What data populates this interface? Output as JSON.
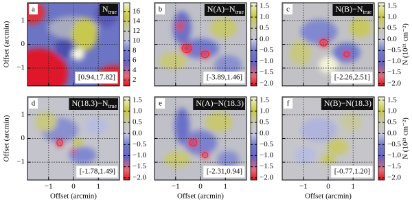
{
  "chart_data": [
    {
      "type": "heatmap",
      "label": "a",
      "title": {
        "main": "N",
        "sub": "true"
      },
      "range_label": "[0.94,17.82]",
      "xlim": [
        -1.85,
        1.85
      ],
      "ylim": [
        -1.75,
        1.75
      ],
      "xticks": [
        {
          "value": -1,
          "label": "−1"
        },
        0,
        1
      ],
      "yticks": [
        {
          "value": -1,
          "label": "−1"
        },
        0,
        1
      ],
      "show_xticklabels": false,
      "show_yticklabels": true,
      "ylabel": "Offset (arcmin)",
      "grid": true,
      "colorbar": {
        "lim": [
          0.8,
          17.8
        ],
        "ticks": [
          2,
          4,
          6,
          8,
          10,
          12,
          14,
          16
        ]
      }
    },
    {
      "type": "heatmap",
      "label": "b",
      "title": {
        "main": "N(A)−N",
        "sub": "true"
      },
      "range_label": "[-3.89,1.46]",
      "xlim": [
        -1.85,
        1.85
      ],
      "ylim": [
        -1.75,
        1.75
      ],
      "xticks": [
        -1,
        0,
        1
      ],
      "yticks": [
        -1,
        0,
        1
      ],
      "show_xticklabels": false,
      "show_yticklabels": false,
      "grid": true,
      "colorbar": {
        "lim": [
          -2.1,
          1.65
        ],
        "ticks": [
          {
            "value": -2,
            "label": "−2.0"
          },
          {
            "value": -1.5,
            "label": "−1.5"
          },
          {
            "value": -1,
            "label": "−1.0"
          },
          {
            "value": -0.5,
            "label": "−0.5"
          },
          {
            "value": 0,
            "label": "0.0"
          },
          {
            "value": 0.5,
            "label": "0.5"
          },
          {
            "value": 1,
            "label": "1.0"
          },
          {
            "value": 1.5,
            "label": "1.5"
          }
        ]
      }
    },
    {
      "type": "heatmap",
      "label": "c",
      "title": {
        "main": "N(B)−N",
        "sub": "true"
      },
      "range_label": "[-2.26,2.51]",
      "xlim": [
        -1.85,
        1.85
      ],
      "ylim": [
        -1.75,
        1.75
      ],
      "xticks": [
        -1,
        0,
        1
      ],
      "yticks": [
        -1,
        0,
        1
      ],
      "show_xticklabels": false,
      "show_yticklabels": false,
      "grid": true,
      "colorbar": {
        "lim": [
          -2.1,
          1.65
        ],
        "label": "N (10²¹ cm⁻²)",
        "ticks": [
          {
            "value": -2,
            "label": "−2.0"
          },
          {
            "value": -1.5,
            "label": "−1.5"
          },
          {
            "value": -1,
            "label": "−1.0"
          },
          {
            "value": -0.5,
            "label": "−0.5"
          },
          {
            "value": 0,
            "label": "0.0"
          },
          {
            "value": 0.5,
            "label": "0.5"
          },
          {
            "value": 1,
            "label": "1.0"
          },
          {
            "value": 1.5,
            "label": "1.5"
          }
        ]
      }
    },
    {
      "type": "heatmap",
      "label": "d",
      "title": {
        "main": "N(18.3)−N",
        "sub": "true"
      },
      "range_label": "[-1.78,1.49]",
      "xlim": [
        -1.85,
        1.85
      ],
      "ylim": [
        -1.75,
        1.75
      ],
      "xticks": [
        {
          "value": -1,
          "label": "−1"
        },
        0,
        1
      ],
      "yticks": [
        {
          "value": -1,
          "label": "−1"
        },
        0,
        1
      ],
      "show_xticklabels": true,
      "show_yticklabels": true,
      "xlabel": "Offset (arcmin)",
      "ylabel": "Offset (arcmin)",
      "grid": true,
      "colorbar": {
        "lim": [
          -2.1,
          1.65
        ],
        "ticks": [
          {
            "value": -2,
            "label": "−2.0"
          },
          {
            "value": -1.5,
            "label": "−1.5"
          },
          {
            "value": -1,
            "label": "−1.0"
          },
          {
            "value": -0.5,
            "label": "−0.5"
          },
          {
            "value": 0,
            "label": "0.0"
          },
          {
            "value": 0.5,
            "label": "0.5"
          },
          {
            "value": 1,
            "label": "1.0"
          },
          {
            "value": 1.5,
            "label": "1.5"
          }
        ]
      }
    },
    {
      "type": "heatmap",
      "label": "e",
      "title": {
        "main": "N(A)−N(18.3)"
      },
      "range_label": "[-2.31,0.94]",
      "xlim": [
        -1.85,
        1.85
      ],
      "ylim": [
        -1.75,
        1.75
      ],
      "xticks": [
        {
          "value": -1,
          "label": "−1"
        },
        0,
        1
      ],
      "yticks": [
        -1,
        0,
        1
      ],
      "show_xticklabels": true,
      "show_yticklabels": false,
      "xlabel": "Offset (arcmin)",
      "grid": true,
      "colorbar": {
        "lim": [
          -2.1,
          1.65
        ],
        "ticks": [
          {
            "value": -2,
            "label": "−2.0"
          },
          {
            "value": -1.5,
            "label": "−1.5"
          },
          {
            "value": -1,
            "label": "−1.0"
          },
          {
            "value": -0.5,
            "label": "−0.5"
          },
          {
            "value": 0,
            "label": "0.0"
          },
          {
            "value": 0.5,
            "label": "0.5"
          },
          {
            "value": 1,
            "label": "1.0"
          },
          {
            "value": 1.5,
            "label": "1.5"
          }
        ]
      }
    },
    {
      "type": "heatmap",
      "label": "f",
      "title": {
        "main": "N(B)−N(18.3)"
      },
      "range_label": "[-0.77,1.20]",
      "xlim": [
        -1.85,
        1.85
      ],
      "ylim": [
        -1.75,
        1.75
      ],
      "xticks": [
        {
          "value": -1,
          "label": "−1"
        },
        0,
        1
      ],
      "yticks": [
        -1,
        0,
        1
      ],
      "show_xticklabels": true,
      "show_yticklabels": false,
      "xlabel": "Offset (arcmin)",
      "grid": true,
      "colorbar": {
        "lim": [
          -2.1,
          1.65
        ],
        "label": "N (10²¹ cm⁻²)",
        "ticks": [
          {
            "value": -2,
            "label": "−2.0"
          },
          {
            "value": -1.5,
            "label": "−1.5"
          },
          {
            "value": -1,
            "label": "−1.0"
          },
          {
            "value": -0.5,
            "label": "−0.5"
          },
          {
            "value": 0,
            "label": "0.0"
          },
          {
            "value": 0.5,
            "label": "0.5"
          },
          {
            "value": 1,
            "label": "1.0"
          },
          {
            "value": 1.5,
            "label": "1.5"
          }
        ]
      }
    }
  ]
}
